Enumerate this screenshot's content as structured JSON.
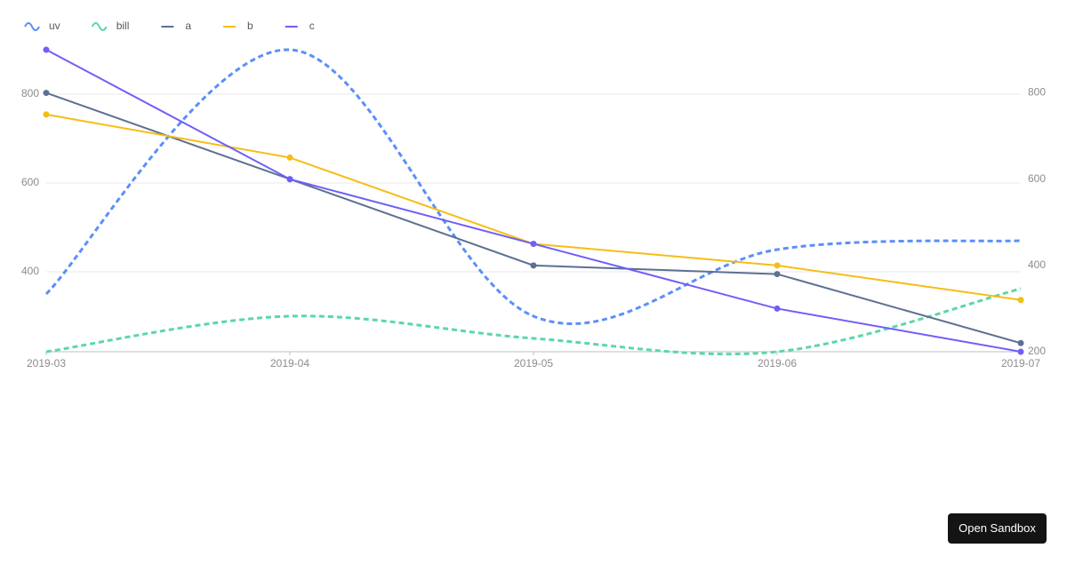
{
  "chart_data": {
    "type": "line",
    "categories": [
      "2019-03",
      "2019-04",
      "2019-05",
      "2019-06",
      "2019-07"
    ],
    "series": [
      {
        "name": "uv",
        "color": "#5B8FF9",
        "values": [
          350,
          900,
          300,
          450,
          470
        ],
        "smooth": true,
        "dashed": true,
        "points": false
      },
      {
        "name": "bill",
        "color": "#5AD8A6",
        "values": [
          220,
          300,
          250,
          220,
          362
        ],
        "smooth": true,
        "dashed": true,
        "points": false
      },
      {
        "name": "a",
        "color": "#5D7092",
        "values": [
          800,
          600,
          400,
          380,
          220
        ],
        "axis": "y2",
        "smooth": false,
        "dashed": false,
        "points": true
      },
      {
        "name": "b",
        "color": "#F6BD16",
        "values": [
          750,
          650,
          450,
          400,
          320
        ],
        "axis": "y2",
        "smooth": false,
        "dashed": false,
        "points": true
      },
      {
        "name": "c",
        "color": "#6F5EF9",
        "values": [
          900,
          600,
          450,
          300,
          200
        ],
        "axis": "y2",
        "smooth": false,
        "dashed": false,
        "points": true
      }
    ],
    "ylim": [
      220,
      900
    ],
    "yticks": [
      400,
      600,
      800
    ],
    "y2lim": [
      200,
      900
    ],
    "y2ticks": [
      200,
      400,
      600,
      800
    ],
    "grid": true,
    "legend": "top-left"
  },
  "button": {
    "label": "Open Sandbox"
  }
}
